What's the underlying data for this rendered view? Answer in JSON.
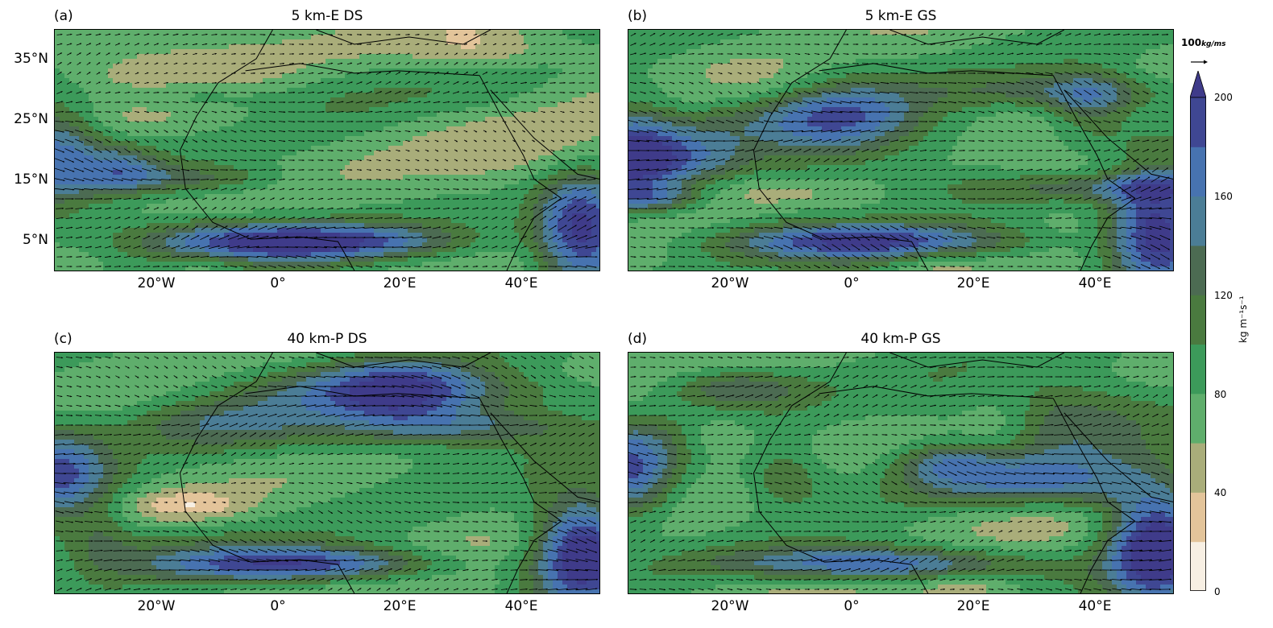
{
  "figure": {
    "panels": [
      {
        "label": "(a)",
        "title": "5 km-E DS",
        "seed": 11
      },
      {
        "label": "(b)",
        "title": "5 km-E GS",
        "seed": 23
      },
      {
        "label": "(c)",
        "title": "40 km-P DS",
        "seed": 37
      },
      {
        "label": "(d)",
        "title": "40 km-P GS",
        "seed": 51
      }
    ],
    "x_ticks": [
      "20°W",
      "0°",
      "20°E",
      "40°E"
    ],
    "y_ticks": [
      "35°N",
      "25°N",
      "15°N",
      "5°N"
    ],
    "colorbar": {
      "ticks": [
        "200",
        "160",
        "120",
        "80",
        "40",
        "0"
      ],
      "label": "kg m⁻¹s⁻¹",
      "levels": [
        0,
        20,
        40,
        60,
        80,
        100,
        120,
        140,
        160,
        180,
        200
      ],
      "colors": [
        "#f7efe3",
        "#e3c49a",
        "#a9ad7a",
        "#5fae6c",
        "#3c9a5a",
        "#4a7a3f",
        "#4c6b52",
        "#4b7d96",
        "#4773b0",
        "#3f4793"
      ],
      "extend_color": "#3f3b8a"
    },
    "reference_vector": {
      "label_value": "100",
      "label_unit": "kg/ms"
    }
  }
}
